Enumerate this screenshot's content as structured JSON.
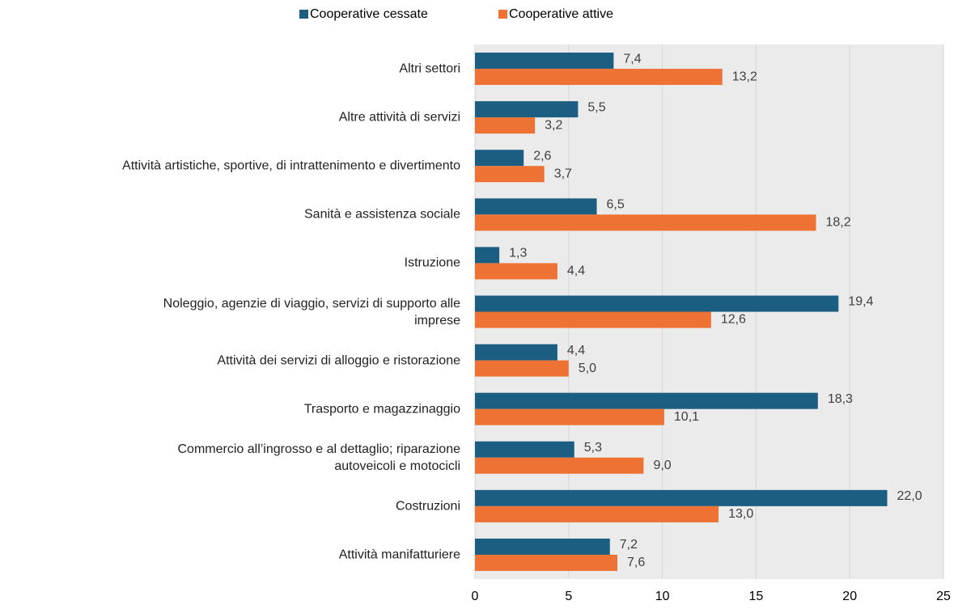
{
  "chart_data": {
    "type": "hbar",
    "categories": [
      "Altri settori",
      "Altre attività di servizi",
      "Attività artistiche, sportive, di intrattenimento e divertimento",
      "Sanità e assistenza sociale",
      "Istruzione",
      "Noleggio, agenzie di viaggio, servizi di supporto alle\nimprese",
      "Attività dei servizi di alloggio e ristorazione",
      "Trasporto e magazzinaggio",
      "Commercio all’ingrosso e al dettaglio; riparazione\nautoveicoli e motocicli",
      "Costruzioni",
      "Attività manifatturiere"
    ],
    "series": [
      {
        "name": "Cooperative cessate",
        "color": "#1b5e82",
        "values": [
          7.4,
          5.5,
          2.6,
          6.5,
          1.3,
          19.4,
          4.4,
          18.3,
          5.3,
          22.0,
          7.2
        ],
        "value_labels": [
          "7,4",
          "5,5",
          "2,6",
          "6,5",
          "1,3",
          "19,4",
          "4,4",
          "18,3",
          "5,3",
          "22,0",
          "7,2"
        ]
      },
      {
        "name": "Cooperative attive",
        "color": "#ed7234",
        "values": [
          13.2,
          3.2,
          3.7,
          18.2,
          4.4,
          12.6,
          5.0,
          10.1,
          9.0,
          13.0,
          7.6
        ],
        "value_labels": [
          "13,2",
          "3,2",
          "3,7",
          "18,2",
          "4,4",
          "12,6",
          "5,0",
          "10,1",
          "9,0",
          "13,0",
          "7,6"
        ]
      }
    ],
    "xlim": [
      0,
      25
    ],
    "xticks": [
      0,
      5,
      10,
      15,
      20,
      25
    ],
    "grid": true,
    "legend": "top"
  }
}
